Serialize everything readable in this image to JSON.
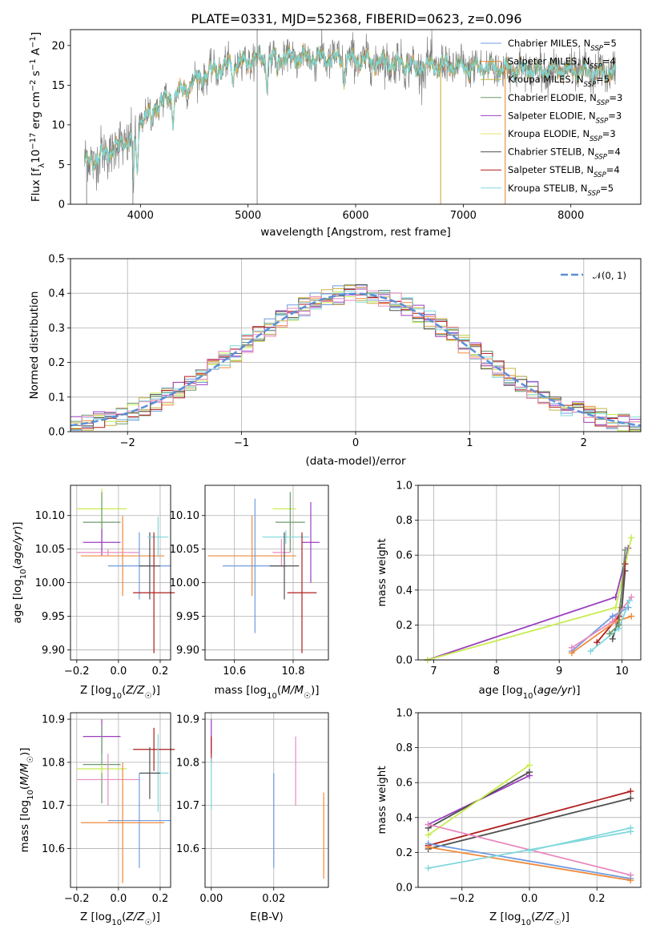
{
  "figure_title": "PLATE=0331, MJD=52368, FIBERID=0623, z=0.096",
  "colors": {
    "chabrier_miles": "#6f9be0",
    "salpeter_miles": "#f08a3c",
    "kroupa_miles": "#c8b444",
    "chabrier_elodie": "#6e9a6e",
    "salpeter_elodie": "#9b3fc0",
    "kroupa_elodie": "#e8e060",
    "chabrier_stelib": "#505050",
    "salpeter_stelib": "#b01c1c",
    "kroupa_stelib": "#80d8dc",
    "pink": "#e88cc0",
    "lime": "#c8ec50",
    "gaussian": "#5b8fd9"
  },
  "chart_data": [
    {
      "id": "spectrum",
      "type": "line",
      "xlabel": "wavelength [Angstrom, rest frame]",
      "ylabel": "Flux [f_λ 10^-17 erg cm^-2 s^-1 A^-1]",
      "xlim": [
        3350,
        8650
      ],
      "ylim": [
        0,
        22
      ],
      "xticks": [
        "4000",
        "5000",
        "6000",
        "7000",
        "8000"
      ],
      "yticks": [
        "0",
        "5",
        "10",
        "15",
        "20"
      ],
      "grid": false,
      "legend_position": "upper-right",
      "legend": [
        {
          "name": "Chabrier MILES",
          "nssp": "5"
        },
        {
          "name": "Salpeter MILES",
          "nssp": "4"
        },
        {
          "name": "Kroupa MILES",
          "nssp": "5"
        },
        {
          "name": "Chabrier ELODIE",
          "nssp": "3"
        },
        {
          "name": "Salpeter ELODIE",
          "nssp": "3"
        },
        {
          "name": "Kroupa ELODIE",
          "nssp": "3"
        },
        {
          "name": "Chabrier STELIB",
          "nssp": "4"
        },
        {
          "name": "Salpeter STELIB",
          "nssp": "4"
        },
        {
          "name": "Kroupa STELIB",
          "nssp": "5"
        }
      ],
      "nssp_label": "N",
      "nssp_sub": "SSP",
      "continuum_anchors": [
        [
          3480,
          5.3
        ],
        [
          3600,
          5.8
        ],
        [
          3750,
          7.0
        ],
        [
          3900,
          8.2
        ],
        [
          3950,
          7.5
        ],
        [
          4000,
          10.5
        ],
        [
          4150,
          12.5
        ],
        [
          4300,
          13.5
        ],
        [
          4500,
          15.5
        ],
        [
          4700,
          17.0
        ],
        [
          4900,
          17.8
        ],
        [
          5100,
          18.3
        ],
        [
          5400,
          18.5
        ],
        [
          5700,
          18.4
        ],
        [
          6000,
          18.2
        ],
        [
          6300,
          17.8
        ],
        [
          6600,
          17.5
        ],
        [
          6900,
          17.4
        ],
        [
          7200,
          17.2
        ],
        [
          7500,
          17.0
        ],
        [
          7800,
          16.9
        ],
        [
          8100,
          16.7
        ],
        [
          8400,
          16.6
        ]
      ],
      "absorption_features": [
        [
          3934,
          5.0
        ],
        [
          3969,
          4.5
        ],
        [
          4101,
          2.5
        ],
        [
          4304,
          3.0
        ],
        [
          4861,
          1.8
        ],
        [
          5175,
          3.0
        ],
        [
          5270,
          1.5
        ],
        [
          5892,
          2.5
        ],
        [
          6563,
          1.5
        ]
      ],
      "spikes": [
        [
          5085,
          0,
          22
        ],
        [
          6790,
          0,
          17.2
        ],
        [
          7390,
          0,
          17.5
        ],
        [
          3500,
          0,
          5.5
        ],
        [
          3930,
          0,
          8
        ]
      ]
    },
    {
      "id": "residuals",
      "type": "histogram",
      "xlabel": "(data-model)/error",
      "ylabel": "Normed distribution",
      "xlim": [
        -2.5,
        2.5
      ],
      "ylim": [
        0,
        0.5
      ],
      "xticks": [
        "−2",
        "−1",
        "0",
        "1",
        "2"
      ],
      "yticks": [
        "0.0",
        "0.1",
        "0.2",
        "0.3",
        "0.4",
        "0.5"
      ],
      "grid": true,
      "bin_width": 0.1,
      "legend_position": "upper-right",
      "gaussian_label": "𝒩(0, 1)",
      "gaussian_mu": 0,
      "gaussian_sigma": 1
    },
    {
      "id": "age_vs_Z",
      "type": "errorbar",
      "xlabel": "Z [log10(Z/Z☉)]",
      "ylabel": "age  [log10(age/yr)]",
      "xlim": [
        -0.23,
        0.25
      ],
      "ylim": [
        9.885,
        10.145
      ],
      "xticks": [
        "−0.2",
        "0.0",
        "0.2"
      ],
      "yticks": [
        "9.90",
        "9.95",
        "10.00",
        "10.05",
        "10.10"
      ],
      "grid": true,
      "points": [
        {
          "color": "lime",
          "x": -0.08,
          "y": 10.11,
          "xerr": 0.12,
          "yerr": 0.03
        },
        {
          "color": "chabrier_elodie",
          "x": -0.08,
          "y": 10.09,
          "xerr": 0.09,
          "yerr": 0.045
        },
        {
          "color": "salpeter_elodie",
          "x": -0.08,
          "y": 10.06,
          "xerr": 0.09,
          "yerr": 0.02
        },
        {
          "color": "pink",
          "x": -0.05,
          "y": 10.045,
          "xerr": 0.15,
          "yerr": 0.005
        },
        {
          "color": "salpeter_miles",
          "x": 0.02,
          "y": 10.04,
          "xerr": 0.2,
          "yerr": 0.06
        },
        {
          "color": "chabrier_miles",
          "x": 0.1,
          "y": 10.025,
          "xerr": 0.15,
          "yerr": 0.05
        },
        {
          "color": "chabrier_stelib",
          "x": 0.15,
          "y": 10.025,
          "xerr": 0.05,
          "yerr": 0.05
        },
        {
          "color": "kroupa_stelib",
          "x": 0.19,
          "y": 10.068,
          "xerr": 0.05,
          "yerr": 0.03
        },
        {
          "color": "salpeter_stelib",
          "x": 0.17,
          "y": 9.985,
          "xerr": 0.1,
          "yerr": 0.09
        }
      ]
    },
    {
      "id": "age_vs_mass",
      "type": "errorbar",
      "xlabel": "mass [log10(M/M☉)]",
      "ylabel": "",
      "xlim": [
        10.5,
        10.92
      ],
      "ylim": [
        9.885,
        10.145
      ],
      "xticks": [
        "10.6",
        "10.8"
      ],
      "yticks": [
        "9.90",
        "9.95",
        "10.00",
        "10.05",
        "10.10"
      ],
      "grid": true,
      "points": [
        {
          "color": "lime",
          "x": 10.77,
          "y": 10.11,
          "xerr": 0.04,
          "yerr": 0.0
        },
        {
          "color": "chabrier_elodie",
          "x": 10.79,
          "y": 10.09,
          "xerr": 0.05,
          "yerr": 0.045
        },
        {
          "color": "salpeter_elodie",
          "x": 10.86,
          "y": 10.06,
          "xerr": 0.03,
          "yerr": 0.06
        },
        {
          "color": "kroupa_stelib",
          "x": 10.775,
          "y": 10.068,
          "xerr": 0.08,
          "yerr": 0.01
        },
        {
          "color": "pink",
          "x": 10.76,
          "y": 10.045,
          "xerr": 0.03,
          "yerr": 0.02
        },
        {
          "color": "salpeter_miles",
          "x": 10.66,
          "y": 10.04,
          "xerr": 0.15,
          "yerr": 0.06
        },
        {
          "color": "chabrier_miles",
          "x": 10.67,
          "y": 10.025,
          "xerr": 0.11,
          "yerr": 0.1
        },
        {
          "color": "chabrier_stelib",
          "x": 10.77,
          "y": 10.025,
          "xerr": 0.05,
          "yerr": 0.05
        },
        {
          "color": "salpeter_stelib",
          "x": 10.83,
          "y": 9.985,
          "xerr": 0.05,
          "yerr": 0.09
        }
      ]
    },
    {
      "id": "mass_weight_vs_age",
      "type": "line",
      "xlabel": "age  [log10(age/yr)]",
      "ylabel": "mass weight",
      "xlim": [
        6.75,
        10.3
      ],
      "ylim": [
        0,
        1
      ],
      "xticks": [
        "7",
        "8",
        "9",
        "10"
      ],
      "yticks": [
        "0.0",
        "0.2",
        "0.4",
        "0.6",
        "0.8",
        "1.0"
      ],
      "grid": true,
      "series": [
        {
          "color": "salpeter_elodie",
          "points": [
            [
              6.9,
              0.0
            ],
            [
              9.9,
              0.36
            ],
            [
              10.1,
              0.64
            ]
          ]
        },
        {
          "color": "lime",
          "points": [
            [
              6.9,
              0.0
            ],
            [
              9.9,
              0.3
            ],
            [
              10.15,
              0.7
            ]
          ]
        },
        {
          "color": "chabrier_stelib",
          "points": [
            [
              9.85,
              0.12
            ],
            [
              10.0,
              0.3
            ],
            [
              10.05,
              0.51
            ]
          ]
        },
        {
          "color": "salpeter_stelib",
          "points": [
            [
              9.6,
              0.1
            ],
            [
              9.95,
              0.25
            ],
            [
              10.05,
              0.55
            ]
          ]
        },
        {
          "color": "chabrier_miles",
          "points": [
            [
              9.2,
              0.05
            ],
            [
              9.85,
              0.25
            ],
            [
              10.1,
              0.3
            ]
          ]
        },
        {
          "color": "salpeter_miles",
          "points": [
            [
              9.2,
              0.04
            ],
            [
              9.9,
              0.22
            ],
            [
              10.15,
              0.25
            ]
          ]
        },
        {
          "color": "pink",
          "points": [
            [
              9.2,
              0.07
            ],
            [
              9.85,
              0.22
            ],
            [
              10.15,
              0.36
            ]
          ]
        },
        {
          "color": "kroupa_stelib",
          "points": [
            [
              9.5,
              0.05
            ],
            [
              9.95,
              0.18
            ],
            [
              10.12,
              0.34
            ]
          ]
        },
        {
          "color": "chabrier_elodie",
          "points": [
            [
              9.8,
              0.15
            ],
            [
              9.95,
              0.2
            ],
            [
              10.05,
              0.63
            ]
          ]
        }
      ]
    },
    {
      "id": "mass_vs_Z",
      "type": "errorbar",
      "xlabel": "Z [log10(Z/Z☉)]",
      "ylabel": "mass [log10(M/M☉)]",
      "xlim": [
        -0.23,
        0.25
      ],
      "ylim": [
        10.51,
        10.915
      ],
      "xticks": [
        "−0.2",
        "0.0",
        "0.2"
      ],
      "yticks": [
        "10.6",
        "10.7",
        "10.8",
        "10.9"
      ],
      "grid": true,
      "points": [
        {
          "color": "salpeter_elodie",
          "x": -0.08,
          "y": 10.86,
          "xerr": 0.09,
          "yerr": 0.04
        },
        {
          "color": "salpeter_stelib",
          "x": 0.17,
          "y": 10.83,
          "xerr": 0.1,
          "yerr": 0.05
        },
        {
          "color": "chabrier_elodie",
          "x": -0.08,
          "y": 10.795,
          "xerr": 0.09,
          "yerr": 0.09
        },
        {
          "color": "lime",
          "x": -0.08,
          "y": 10.785,
          "xerr": 0.12,
          "yerr": 0.01
        },
        {
          "color": "kroupa_stelib",
          "x": 0.19,
          "y": 10.775,
          "xerr": 0.05,
          "yerr": 0.09
        },
        {
          "color": "chabrier_stelib",
          "x": 0.15,
          "y": 10.775,
          "xerr": 0.05,
          "yerr": 0.06
        },
        {
          "color": "pink",
          "x": -0.05,
          "y": 10.76,
          "xerr": 0.15,
          "yerr": 0.06
        },
        {
          "color": "chabrier_miles",
          "x": 0.1,
          "y": 10.665,
          "xerr": 0.15,
          "yerr": 0.11
        },
        {
          "color": "salpeter_miles",
          "x": 0.02,
          "y": 10.66,
          "xerr": 0.2,
          "yerr": 0.14
        }
      ]
    },
    {
      "id": "mass_vs_EBV",
      "type": "errorbar",
      "xlabel": "E(B-V)",
      "ylabel": "",
      "xlim": [
        -0.002,
        0.0375
      ],
      "ylim": [
        10.51,
        10.915
      ],
      "xticks": [
        "0.00",
        "0.02"
      ],
      "yticks": [
        "10.6",
        "10.7",
        "10.8",
        "10.9"
      ],
      "grid": true,
      "points": [
        {
          "color": "salpeter_elodie",
          "x": 0.0,
          "y": 10.86,
          "xerr": 0.0,
          "yerr": 0.04
        },
        {
          "color": "salpeter_stelib",
          "x": 0.0,
          "y": 10.83,
          "xerr": 0.0,
          "yerr": 0.03
        },
        {
          "color": "kroupa_stelib",
          "x": 0.0,
          "y": 10.75,
          "xerr": 0.0,
          "yerr": 0.06
        },
        {
          "color": "chabrier_miles",
          "x": 0.02,
          "y": 10.665,
          "xerr": 0.0,
          "yerr": 0.11
        },
        {
          "color": "pink",
          "x": 0.027,
          "y": 10.78,
          "xerr": 0.0,
          "yerr": 0.08
        },
        {
          "color": "salpeter_miles",
          "x": 0.036,
          "y": 10.63,
          "xerr": 0.0,
          "yerr": 0.1
        }
      ]
    },
    {
      "id": "mass_weight_vs_Z",
      "type": "line",
      "xlabel": "Z [log10(Z/Z☉)]",
      "ylabel": "mass weight",
      "xlim": [
        -0.33,
        0.33
      ],
      "ylim": [
        0,
        1
      ],
      "xticks": [
        "−0.2",
        "0.0",
        "0.2"
      ],
      "yticks": [
        "0.0",
        "0.2",
        "0.4",
        "0.6",
        "0.8",
        "1.0"
      ],
      "grid": true,
      "series": [
        {
          "color": "salpeter_elodie",
          "points": [
            [
              -0.3,
              0.36
            ],
            [
              0.0,
              0.64
            ]
          ]
        },
        {
          "color": "chabrier_stelib",
          "points": [
            [
              -0.3,
              0.34
            ],
            [
              0.0,
              0.66
            ]
          ]
        },
        {
          "color": "lime",
          "points": [
            [
              -0.3,
              0.3
            ],
            [
              0.0,
              0.7
            ]
          ]
        },
        {
          "color": "chabrier_stelib",
          "points": [
            [
              -0.3,
              0.22
            ],
            [
              0.3,
              0.51
            ]
          ]
        },
        {
          "color": "salpeter_stelib",
          "points": [
            [
              -0.3,
              0.24
            ],
            [
              0.3,
              0.55
            ]
          ]
        },
        {
          "color": "pink",
          "points": [
            [
              -0.3,
              0.36
            ],
            [
              0.3,
              0.07
            ]
          ]
        },
        {
          "color": "chabrier_miles",
          "points": [
            [
              -0.3,
              0.25
            ],
            [
              0.3,
              0.05
            ]
          ]
        },
        {
          "color": "salpeter_miles",
          "points": [
            [
              -0.3,
              0.23
            ],
            [
              0.3,
              0.04
            ]
          ]
        },
        {
          "color": "kroupa_stelib",
          "points": [
            [
              -0.3,
              0.11
            ],
            [
              0.3,
              0.32
            ]
          ]
        },
        {
          "color": "kroupa_stelib",
          "points": [
            [
              0.0,
              0.21
            ],
            [
              0.3,
              0.34
            ]
          ]
        }
      ]
    }
  ]
}
